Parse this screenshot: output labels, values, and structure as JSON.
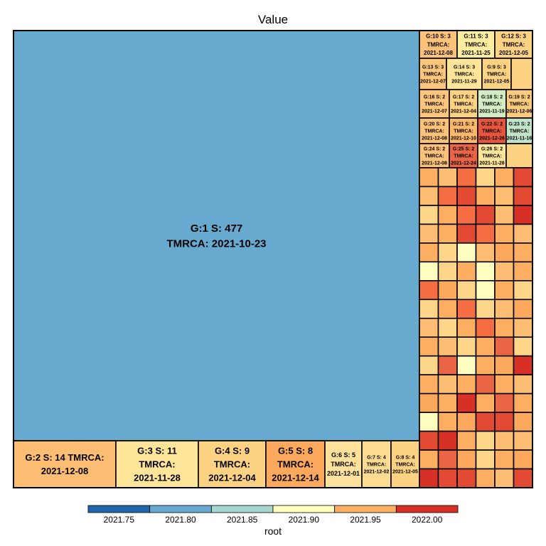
{
  "chart_data": {
    "type": "treemap",
    "title": "Value",
    "legend": {
      "title": "root",
      "placement": "bottom",
      "ticks": [
        "2021.75",
        "2021.80",
        "2021.85",
        "2021.90",
        "2021.95",
        "2022.00"
      ],
      "colors": [
        "#2166ac",
        "#67a9cf",
        "#a6d6ce",
        "#ffffbf",
        "#fdae61",
        "#d73027"
      ]
    },
    "labeled_groups": [
      {
        "group": 1,
        "size": 477,
        "tmrca": "2021-10-23",
        "label_lines": [
          "G:1 S: 477",
          "TMRCA: 2021-10-23"
        ],
        "color": "#67a9cf"
      },
      {
        "group": 2,
        "size": 14,
        "tmrca": "2021-12-08",
        "label_lines": [
          "G:2 S: 14 TMRCA:",
          "2021-12-08"
        ],
        "color": "#fdbe74"
      },
      {
        "group": 3,
        "size": 11,
        "tmrca": "2021-11-28",
        "label_lines": [
          "G:3 S: 11",
          "TMRCA:",
          "2021-11-28"
        ],
        "color": "#fee59a"
      },
      {
        "group": 4,
        "size": 9,
        "tmrca": "2021-12-04",
        "label_lines": [
          "G:4 S: 9",
          "TMRCA:",
          "2021-12-04"
        ],
        "color": "#fdd283"
      },
      {
        "group": 5,
        "size": 8,
        "tmrca": "2021-12-14",
        "label_lines": [
          "G:5 S: 8",
          "TMRCA:",
          "2021-12-14"
        ],
        "color": "#fca95e"
      },
      {
        "group": 6,
        "size": 5,
        "tmrca": "2021-12-01",
        "label_lines": [
          "G:6 S: 5",
          "TMRCA:",
          "2021-12-01"
        ],
        "color": "#fee19a"
      },
      {
        "group": 7,
        "size": 4,
        "tmrca": "2021-12-02",
        "label_lines": [
          "G:7 S: 4",
          "TMRCA:",
          "2021-12-02"
        ],
        "color": "#fedb92"
      },
      {
        "group": 8,
        "size": 4,
        "tmrca": "2021-12-05",
        "label_lines": [
          "G:8 S: 4",
          "TMRCA:",
          "2021-12-05"
        ],
        "color": "#fdd283"
      },
      {
        "group": 10,
        "size": 3,
        "tmrca": "2021-12-08",
        "label_lines": [
          "G:10 S: 3",
          "TMRCA:",
          "2021-12-08"
        ],
        "color": "#fdc27a"
      },
      {
        "group": 11,
        "size": 3,
        "tmrca": "2021-11-25",
        "label_lines": [
          "G:11 S: 3",
          "TMRCA:",
          "2021-11-25"
        ],
        "color": "#feed9f"
      },
      {
        "group": 12,
        "size": 3,
        "tmrca": "2021-12-05",
        "label_lines": [
          "G:12 S: 3",
          "TMRCA:",
          "2021-12-05"
        ],
        "color": "#fdd283"
      },
      {
        "group": 13,
        "size": 3,
        "tmrca": "2021-12-07",
        "label_lines": [
          "G:13 S: 3",
          "TMRCA:",
          "2021-12-07"
        ],
        "color": "#fdc67c"
      },
      {
        "group": 14,
        "size": 3,
        "tmrca": "2021-11-29",
        "label_lines": [
          "G:14 S: 3",
          "TMRCA:",
          "2021-11-29"
        ],
        "color": "#fee59a"
      },
      {
        "group": 9,
        "size": 3,
        "tmrca": "2021-12-05",
        "label_lines": [
          "G:9 S: 3",
          "TMRCA:",
          "2021-12-05"
        ],
        "color": "#fdd283"
      },
      {
        "group": 16,
        "size": 2,
        "tmrca": "2021-12-07",
        "label_lines": [
          "G:16 S: 2",
          "TMRCA:",
          "2021-12-07"
        ],
        "color": "#fdc67c"
      },
      {
        "group": 17,
        "size": 2,
        "tmrca": "2021-12-04",
        "label_lines": [
          "G:17 S: 2",
          "TMRCA:",
          "2021-12-04"
        ],
        "color": "#fdd283"
      },
      {
        "group": 18,
        "size": 2,
        "tmrca": "2021-11-19",
        "label_lines": [
          "G:18 S: 2",
          "TMRCA:",
          "2021-11-19"
        ],
        "color": "#d4ecc4"
      },
      {
        "group": 19,
        "size": 2,
        "tmrca": "2021-12-06",
        "label_lines": [
          "G:19 S: 2",
          "TMRCA:",
          "2021-12-06"
        ],
        "color": "#fdcb7e"
      },
      {
        "group": 20,
        "size": 2,
        "tmrca": "2021-12-08",
        "label_lines": [
          "G:20 S: 2",
          "TMRCA:",
          "2021-12-08"
        ],
        "color": "#fdc27a"
      },
      {
        "group": 21,
        "size": 2,
        "tmrca": "2021-12-10",
        "label_lines": [
          "G:21 S: 2",
          "TMRCA:",
          "2021-12-10"
        ],
        "color": "#fdb86c"
      },
      {
        "group": 22,
        "size": 2,
        "tmrca": "2021-12-26",
        "label_lines": [
          "G:22 S: 2",
          "TMRCA:",
          "2021-12-26"
        ],
        "color": "#e6553e"
      },
      {
        "group": 23,
        "size": 2,
        "tmrca": "2021-11-16",
        "label_lines": [
          "G:23 S: 2",
          "TMRCA:",
          "2021-11-16"
        ],
        "color": "#c2e4cb"
      },
      {
        "group": 24,
        "size": 2,
        "tmrca": "2021-12-08",
        "label_lines": [
          "G:24 S: 2",
          "TMRCA:",
          "2021-12-08"
        ],
        "color": "#fdc27a"
      },
      {
        "group": 25,
        "size": 2,
        "tmrca": "2021-12-24",
        "label_lines": [
          "G:25 S: 2",
          "TMRCA:",
          "2021-12-24"
        ],
        "color": "#ea6545"
      },
      {
        "group": 26,
        "size": 2,
        "tmrca": "2021-11-28",
        "label_lines": [
          "G:26 S: 2",
          "TMRCA:",
          "2021-11-28"
        ],
        "color": "#fee59a"
      }
    ],
    "unlabeled_groups": {
      "description": "rows of single-sample tiles, top to bottom, left to right",
      "rows": [
        [
          "#fdc47a",
          "#fdd283"
        ],
        [
          "#fdc47a",
          "#fdc47a",
          "#fdc47a",
          "#fdc47a",
          "#fdc47a",
          "#fdc47a",
          "#fdd283"
        ],
        [
          "#fdc47a",
          "#fdc47a",
          "#fdc47a",
          "#fdc47a",
          "#fdc47a",
          "#fdc47a",
          "#fdd283"
        ],
        [
          "#fdc47a",
          "#fdc47a",
          "#fdc47a",
          "#fdc47a",
          "#fdc47a",
          "#fdc47a",
          "#fdd283"
        ],
        [
          "#fdc47a",
          "#fdc47a",
          "#fdc47a",
          "#fdc47a",
          "#fdc47a",
          "#fdc47a",
          "#fdd283"
        ],
        [
          "#fdc47a",
          "#fdc47a",
          "#fdc47a",
          "#fdc47a",
          "#fdc47a",
          "#fdc47a",
          "#fdd283"
        ],
        [
          "#fdc47a",
          "#fdc47a",
          "#fdc47a",
          "#fdc47a",
          "#fdc47a",
          "#fdc47a",
          "#fdd283"
        ],
        [
          "#fdc47a",
          "#fdc47a",
          "#fdc47a",
          "#fdc47a",
          "#fdc47a",
          "#fdc47a",
          "#fdd283"
        ],
        [
          "#fdc47a",
          "#fdc47a",
          "#fdc47a",
          "#fdc47a",
          "#fdc47a",
          "#fdc47a",
          "#fdd283"
        ],
        [
          "#fdc47a",
          "#fdc47a",
          "#fdc47a",
          "#fdc47a",
          "#fdc47a",
          "#fdc47a",
          "#fdd283"
        ],
        [
          "#fdc47a",
          "#fdc47a",
          "#fdc47a",
          "#fdc47a",
          "#fdc47a",
          "#fdc47a",
          "#fdd283"
        ],
        [
          "#fdc47a",
          "#fdc47a",
          "#fdc47a",
          "#fdc47a",
          "#fdc47a",
          "#fdc47a",
          "#fdd283"
        ],
        [
          "#fdc47a",
          "#fdc47a",
          "#fdc47a",
          "#fdc47a",
          "#fdc47a",
          "#fdc47a",
          "#fdd283"
        ],
        [
          "#fdc47a",
          "#fdc47a",
          "#fdc47a",
          "#fdc47a",
          "#fdc47a",
          "#fdc47a",
          "#fdd283"
        ],
        [
          "#fdc47a",
          "#fdc47a",
          "#fdc47a",
          "#fdc47a",
          "#fdc47a",
          "#fdc47a",
          "#fdd283"
        ],
        [
          "#fdc47a",
          "#fdc47a",
          "#fdc47a",
          "#fdc47a",
          "#fdc47a",
          "#fdc47a",
          "#fdd283"
        ],
        [
          "#fdc47a",
          "#fdc47a",
          "#fdc47a",
          "#fdc47a",
          "#fdc47a",
          "#fdc47a",
          "#fdd283"
        ]
      ]
    }
  }
}
